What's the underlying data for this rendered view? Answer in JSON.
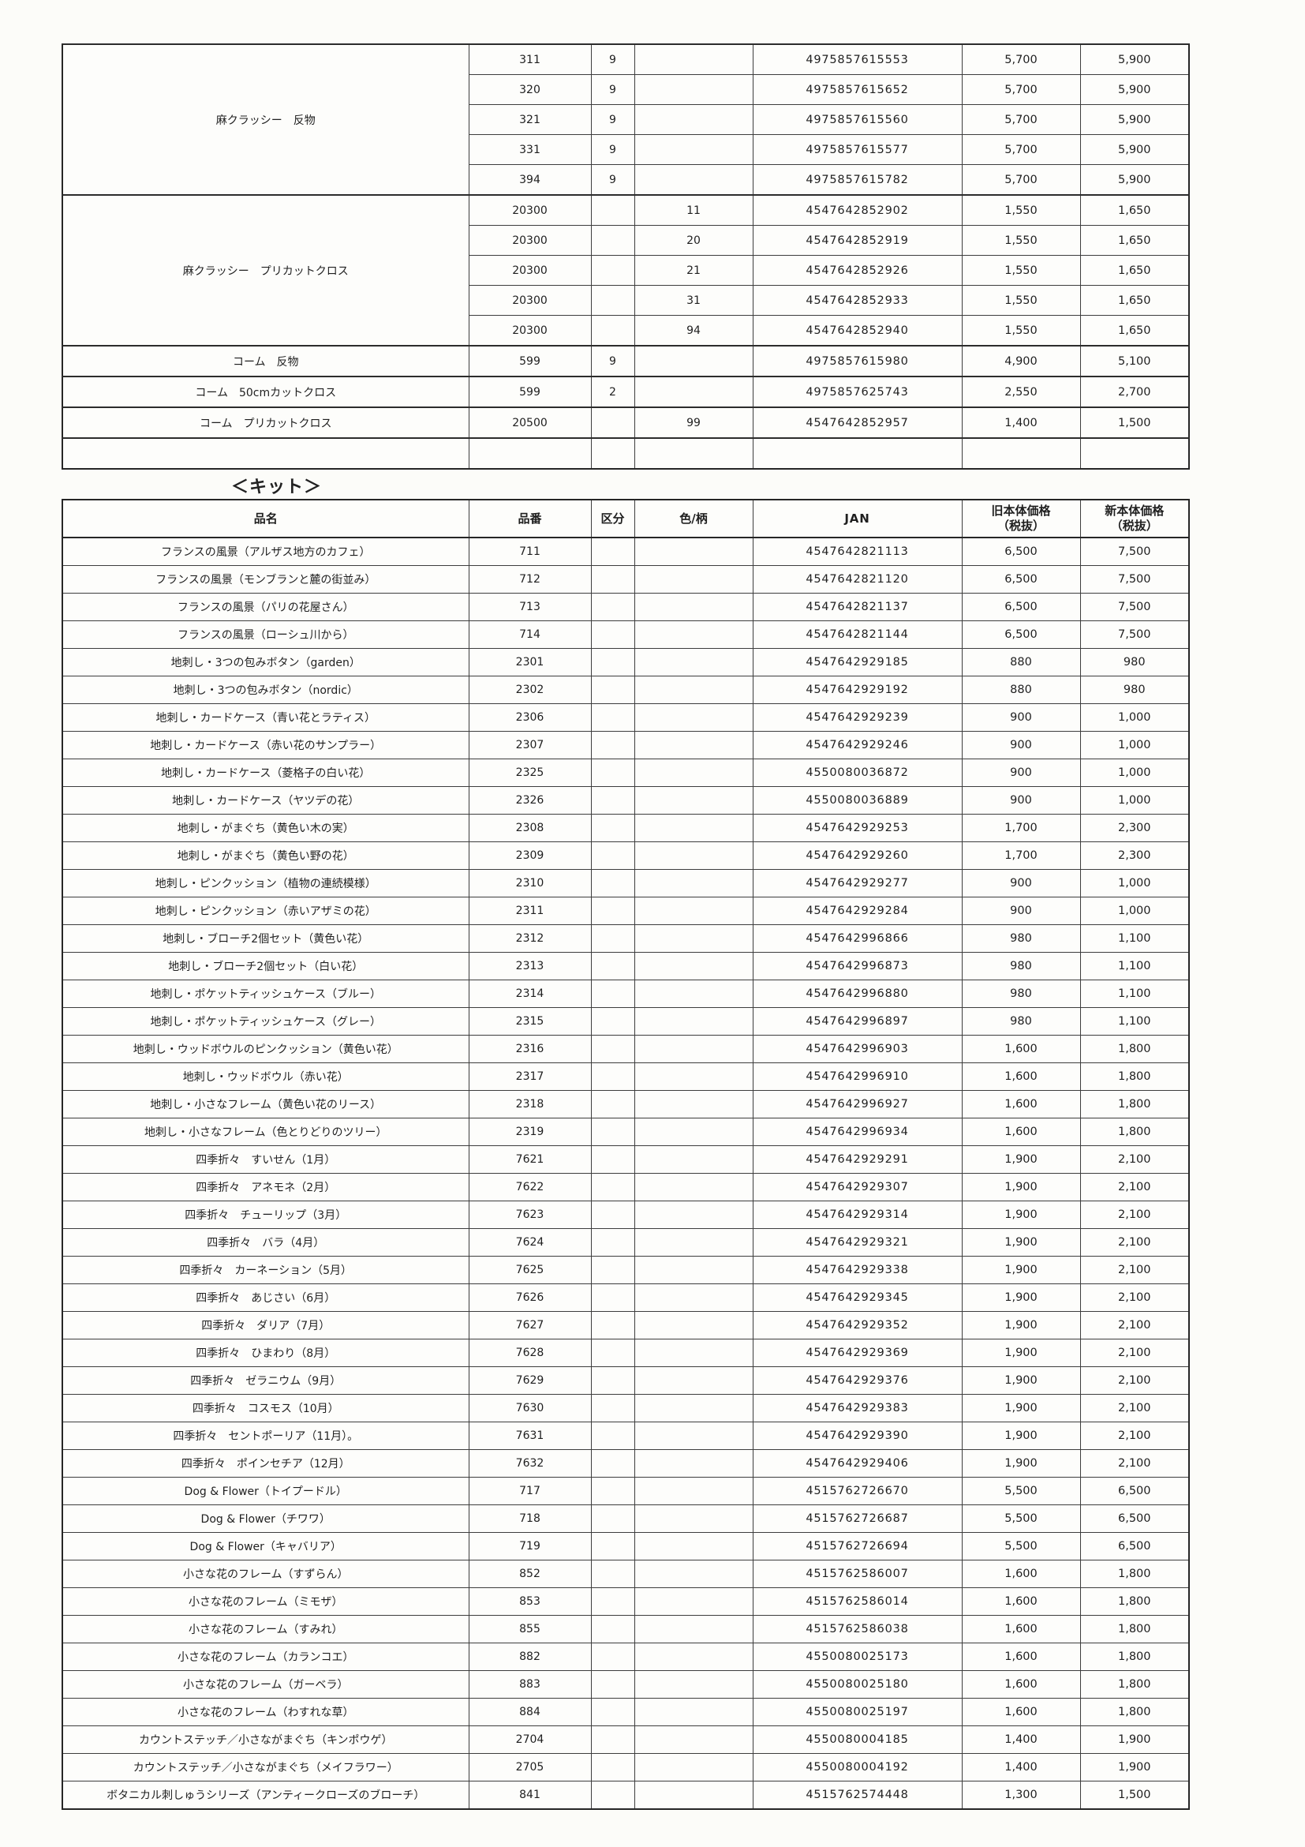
{
  "kit_section": {
    "title": "＜キット＞"
  },
  "top_table": {
    "rows": [
      {
        "name": "麻クラッシー　反物",
        "span": 5,
        "item": "311",
        "kubun": "9",
        "color": "",
        "jan": "4975857615553",
        "old": "5,700",
        "new": "5,900"
      },
      {
        "item": "320",
        "kubun": "9",
        "color": "",
        "jan": "4975857615652",
        "old": "5,700",
        "new": "5,900"
      },
      {
        "item": "321",
        "kubun": "9",
        "color": "",
        "jan": "4975857615560",
        "old": "5,700",
        "new": "5,900"
      },
      {
        "item": "331",
        "kubun": "9",
        "color": "",
        "jan": "4975857615577",
        "old": "5,700",
        "new": "5,900"
      },
      {
        "item": "394",
        "kubun": "9",
        "color": "",
        "jan": "4975857615782",
        "old": "5,700",
        "new": "5,900"
      },
      {
        "name": "麻クラッシー　プリカットクロス",
        "span": 5,
        "item": "20300",
        "kubun": "",
        "color": "11",
        "jan": "4547642852902",
        "old": "1,550",
        "new": "1,650"
      },
      {
        "item": "20300",
        "kubun": "",
        "color": "20",
        "jan": "4547642852919",
        "old": "1,550",
        "new": "1,650"
      },
      {
        "item": "20300",
        "kubun": "",
        "color": "21",
        "jan": "4547642852926",
        "old": "1,550",
        "new": "1,650"
      },
      {
        "item": "20300",
        "kubun": "",
        "color": "31",
        "jan": "4547642852933",
        "old": "1,550",
        "new": "1,650"
      },
      {
        "item": "20300",
        "kubun": "",
        "color": "94",
        "jan": "4547642852940",
        "old": "1,550",
        "new": "1,650"
      },
      {
        "name": "コーム　反物",
        "item": "599",
        "kubun": "9",
        "color": "",
        "jan": "4975857615980",
        "old": "4,900",
        "new": "5,100"
      },
      {
        "name": "コーム　50cmカットクロス",
        "item": "599",
        "kubun": "2",
        "color": "",
        "jan": "4975857625743",
        "old": "2,550",
        "new": "2,700"
      },
      {
        "name": "コーム　プリカットクロス",
        "item": "20500",
        "kubun": "",
        "color": "99",
        "jan": "4547642852957",
        "old": "1,400",
        "new": "1,500"
      },
      {
        "name": "",
        "item": "",
        "kubun": "",
        "color": "",
        "jan": "",
        "old": "",
        "new": ""
      }
    ]
  },
  "kit_table": {
    "headers": {
      "name": "品名",
      "item": "品番",
      "kubun": "区分",
      "color": "色/柄",
      "jan": "JAN",
      "old": "旧本体価格\n（税抜）",
      "new": "新本体価格\n（税抜）"
    },
    "rows": [
      {
        "name": "フランスの風景（アルザス地方のカフェ）",
        "item": "711",
        "jan": "4547642821113",
        "old": "6,500",
        "new": "7,500"
      },
      {
        "name": "フランスの風景（モンブランと麓の街並み）",
        "item": "712",
        "jan": "4547642821120",
        "old": "6,500",
        "new": "7,500"
      },
      {
        "name": "フランスの風景（パリの花屋さん）",
        "item": "713",
        "jan": "4547642821137",
        "old": "6,500",
        "new": "7,500"
      },
      {
        "name": "フランスの風景（ローシュ川から）",
        "item": "714",
        "jan": "4547642821144",
        "old": "6,500",
        "new": "7,500"
      },
      {
        "name": "地刺し・3つの包みボタン（garden）",
        "item": "2301",
        "jan": "4547642929185",
        "old": "880",
        "new": "980"
      },
      {
        "name": "地刺し・3つの包みボタン（nordic）",
        "item": "2302",
        "jan": "4547642929192",
        "old": "880",
        "new": "980"
      },
      {
        "name": "地刺し・カードケース（青い花とラティス）",
        "item": "2306",
        "jan": "4547642929239",
        "old": "900",
        "new": "1,000"
      },
      {
        "name": "地刺し・カードケース（赤い花のサンプラー）",
        "item": "2307",
        "jan": "4547642929246",
        "old": "900",
        "new": "1,000"
      },
      {
        "name": "地刺し・カードケース（菱格子の白い花）",
        "item": "2325",
        "jan": "4550080036872",
        "old": "900",
        "new": "1,000"
      },
      {
        "name": "地刺し・カードケース（ヤツデの花）",
        "item": "2326",
        "jan": "4550080036889",
        "old": "900",
        "new": "1,000"
      },
      {
        "name": "地刺し・がまぐち（黄色い木の実）",
        "item": "2308",
        "jan": "4547642929253",
        "old": "1,700",
        "new": "2,300"
      },
      {
        "name": "地刺し・がまぐち（黄色い野の花）",
        "item": "2309",
        "jan": "4547642929260",
        "old": "1,700",
        "new": "2,300"
      },
      {
        "name": "地刺し・ピンクッション（植物の連続模様）",
        "item": "2310",
        "jan": "4547642929277",
        "old": "900",
        "new": "1,000"
      },
      {
        "name": "地刺し・ピンクッション（赤いアザミの花）",
        "item": "2311",
        "jan": "4547642929284",
        "old": "900",
        "new": "1,000"
      },
      {
        "name": "地刺し・ブローチ2個セット（黄色い花）",
        "item": "2312",
        "jan": "4547642996866",
        "old": "980",
        "new": "1,100"
      },
      {
        "name": "地刺し・ブローチ2個セット（白い花）",
        "item": "2313",
        "jan": "4547642996873",
        "old": "980",
        "new": "1,100"
      },
      {
        "name": "地刺し・ポケットティッシュケース（ブルー）",
        "item": "2314",
        "jan": "4547642996880",
        "old": "980",
        "new": "1,100"
      },
      {
        "name": "地刺し・ポケットティッシュケース（グレー）",
        "item": "2315",
        "jan": "4547642996897",
        "old": "980",
        "new": "1,100"
      },
      {
        "name": "地刺し・ウッドボウルのピンクッション（黄色い花）",
        "item": "2316",
        "jan": "4547642996903",
        "old": "1,600",
        "new": "1,800"
      },
      {
        "name": "地刺し・ウッドボウル（赤い花）",
        "item": "2317",
        "jan": "4547642996910",
        "old": "1,600",
        "new": "1,800"
      },
      {
        "name": "地刺し・小さなフレーム（黄色い花のリース）",
        "item": "2318",
        "jan": "4547642996927",
        "old": "1,600",
        "new": "1,800"
      },
      {
        "name": "地刺し・小さなフレーム（色とりどりのツリー）",
        "item": "2319",
        "jan": "4547642996934",
        "old": "1,600",
        "new": "1,800"
      },
      {
        "name": "四季折々　すいせん（1月）",
        "item": "7621",
        "jan": "4547642929291",
        "old": "1,900",
        "new": "2,100"
      },
      {
        "name": "四季折々　アネモネ（2月）",
        "item": "7622",
        "jan": "4547642929307",
        "old": "1,900",
        "new": "2,100"
      },
      {
        "name": "四季折々　チューリップ（3月）",
        "item": "7623",
        "jan": "4547642929314",
        "old": "1,900",
        "new": "2,100"
      },
      {
        "name": "四季折々　バラ（4月）",
        "item": "7624",
        "jan": "4547642929321",
        "old": "1,900",
        "new": "2,100"
      },
      {
        "name": "四季折々　カーネーション（5月）",
        "item": "7625",
        "jan": "4547642929338",
        "old": "1,900",
        "new": "2,100"
      },
      {
        "name": "四季折々　あじさい（6月）",
        "item": "7626",
        "jan": "4547642929345",
        "old": "1,900",
        "new": "2,100"
      },
      {
        "name": "四季折々　ダリア（7月）",
        "item": "7627",
        "jan": "4547642929352",
        "old": "1,900",
        "new": "2,100"
      },
      {
        "name": "四季折々　ひまわり（8月）",
        "item": "7628",
        "jan": "4547642929369",
        "old": "1,900",
        "new": "2,100"
      },
      {
        "name": "四季折々　ゼラニウム（9月）",
        "item": "7629",
        "jan": "4547642929376",
        "old": "1,900",
        "new": "2,100"
      },
      {
        "name": "四季折々　コスモス（10月）",
        "item": "7630",
        "jan": "4547642929383",
        "old": "1,900",
        "new": "2,100"
      },
      {
        "name": "四季折々　セントポーリア（11月）。",
        "item": "7631",
        "jan": "4547642929390",
        "old": "1,900",
        "new": "2,100"
      },
      {
        "name": "四季折々　ポインセチア（12月）",
        "item": "7632",
        "jan": "4547642929406",
        "old": "1,900",
        "new": "2,100"
      },
      {
        "name": "Dog & Flower（トイプードル）",
        "item": "717",
        "jan": "4515762726670",
        "old": "5,500",
        "new": "6,500"
      },
      {
        "name": "Dog & Flower（チワワ）",
        "item": "718",
        "jan": "4515762726687",
        "old": "5,500",
        "new": "6,500"
      },
      {
        "name": "Dog & Flower（キャバリア）",
        "item": "719",
        "jan": "4515762726694",
        "old": "5,500",
        "new": "6,500"
      },
      {
        "name": "小さな花のフレーム（すずらん）",
        "item": "852",
        "jan": "4515762586007",
        "old": "1,600",
        "new": "1,800"
      },
      {
        "name": "小さな花のフレーム（ミモザ）",
        "item": "853",
        "jan": "4515762586014",
        "old": "1,600",
        "new": "1,800"
      },
      {
        "name": "小さな花のフレーム（すみれ）",
        "item": "855",
        "jan": "4515762586038",
        "old": "1,600",
        "new": "1,800"
      },
      {
        "name": "小さな花のフレーム（カランコエ）",
        "item": "882",
        "jan": "4550080025173",
        "old": "1,600",
        "new": "1,800"
      },
      {
        "name": "小さな花のフレーム（ガーベラ）",
        "item": "883",
        "jan": "4550080025180",
        "old": "1,600",
        "new": "1,800"
      },
      {
        "name": "小さな花のフレーム（わすれな草）",
        "item": "884",
        "jan": "4550080025197",
        "old": "1,600",
        "new": "1,800"
      },
      {
        "name": "カウントステッチ／小さながまぐち（キンポウゲ）",
        "item": "2704",
        "jan": "4550080004185",
        "old": "1,400",
        "new": "1,900"
      },
      {
        "name": "カウントステッチ／小さながまぐち（メイフラワー）",
        "item": "2705",
        "jan": "4550080004192",
        "old": "1,400",
        "new": "1,900"
      },
      {
        "name": "ボタニカル刺しゅうシリーズ（アンティークローズのブローチ）",
        "item": "841",
        "jan": "4515762574448",
        "old": "1,300",
        "new": "1,500"
      }
    ]
  }
}
